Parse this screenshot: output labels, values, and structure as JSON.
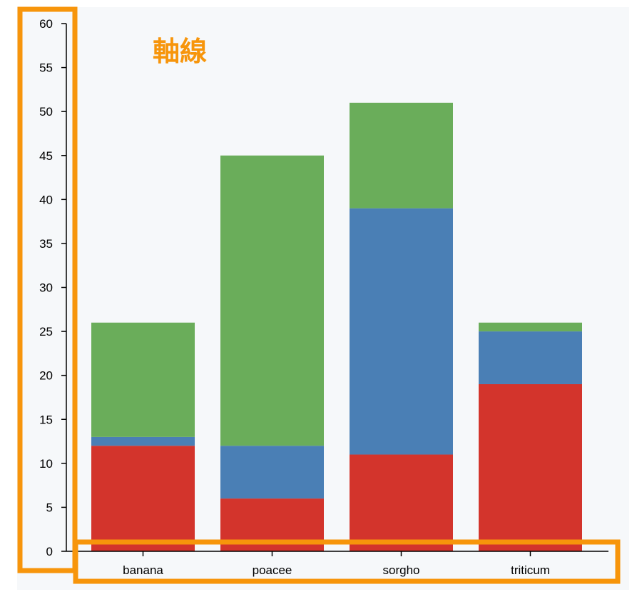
{
  "chart_data": {
    "type": "bar",
    "stacked": true,
    "categories": [
      "banana",
      "poacee",
      "sorgho",
      "triticum"
    ],
    "series": [
      {
        "color": "#d3342c",
        "values": [
          12,
          6,
          11,
          19
        ]
      },
      {
        "color": "#4a7fb5",
        "values": [
          1,
          6,
          28,
          6
        ]
      },
      {
        "color": "#6aad5a",
        "values": [
          13,
          33,
          12,
          1
        ]
      }
    ],
    "ylim": [
      0,
      60
    ],
    "yticks": [
      0,
      5,
      10,
      15,
      20,
      25,
      30,
      35,
      40,
      45,
      50,
      55,
      60
    ],
    "grid": false,
    "xlabel": "",
    "ylabel": "",
    "title": ""
  },
  "annotation": {
    "label": "軸線",
    "highlight_color": "#f7950b"
  }
}
